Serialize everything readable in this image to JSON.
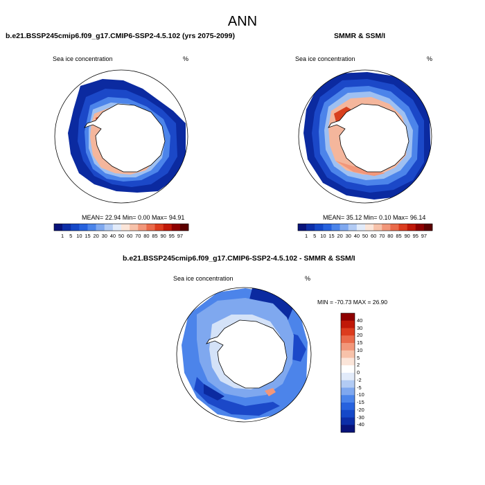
{
  "title": "ANN",
  "left_panel": {
    "title": "b.e21.BSSP245cmip6.f09_g17.CMIP6-SSP2-4.5.102 (yrs 2075-2099)",
    "variable": "Sea ice concentration",
    "units": "%",
    "stats": "MEAN=  22.94  Min=   0.00  Max=  94.91"
  },
  "right_panel": {
    "title": "SMMR & SSM/I",
    "variable": "Sea ice concentration",
    "units": "%",
    "stats": "MEAN=  35.12  Min=   0.10  Max=  96.14"
  },
  "diff_panel": {
    "title": "b.e21.BSSP245cmip6.f09_g17.CMIP6-SSP2-4.5.102 - SMMR & SSM/I",
    "variable": "Sea ice concentration",
    "units": "%",
    "stats": "MIN = -70.73  MAX =  26.90"
  },
  "colorbar_abs": {
    "labels": [
      "1",
      "5",
      "10",
      "15",
      "20",
      "30",
      "40",
      "50",
      "60",
      "70",
      "80",
      "85",
      "90",
      "95",
      "97"
    ],
    "colors": [
      "#08137a",
      "#0c2ea8",
      "#1548c8",
      "#2762de",
      "#4b84ea",
      "#7fa8ef",
      "#b2cbf4",
      "#e2ebfa",
      "#fbe5d9",
      "#f7c2aa",
      "#f2977a",
      "#ea6a4a",
      "#dc3c1e",
      "#c01808",
      "#8e0000",
      "#5c0000"
    ]
  },
  "colorbar_diff": {
    "labels": [
      "40",
      "30",
      "20",
      "15",
      "10",
      "5",
      "2",
      "0",
      "-2",
      "-5",
      "-10",
      "-15",
      "-20",
      "-30",
      "-40"
    ],
    "colors": [
      "#8e0000",
      "#c01808",
      "#dc3c1e",
      "#ea6a4a",
      "#f2977a",
      "#f7c2aa",
      "#fbe5d9",
      "#ffffff",
      "#e2ebfa",
      "#b2cbf4",
      "#7fa8ef",
      "#4b84ea",
      "#2762de",
      "#1548c8",
      "#0c2ea8",
      "#08137a"
    ]
  }
}
